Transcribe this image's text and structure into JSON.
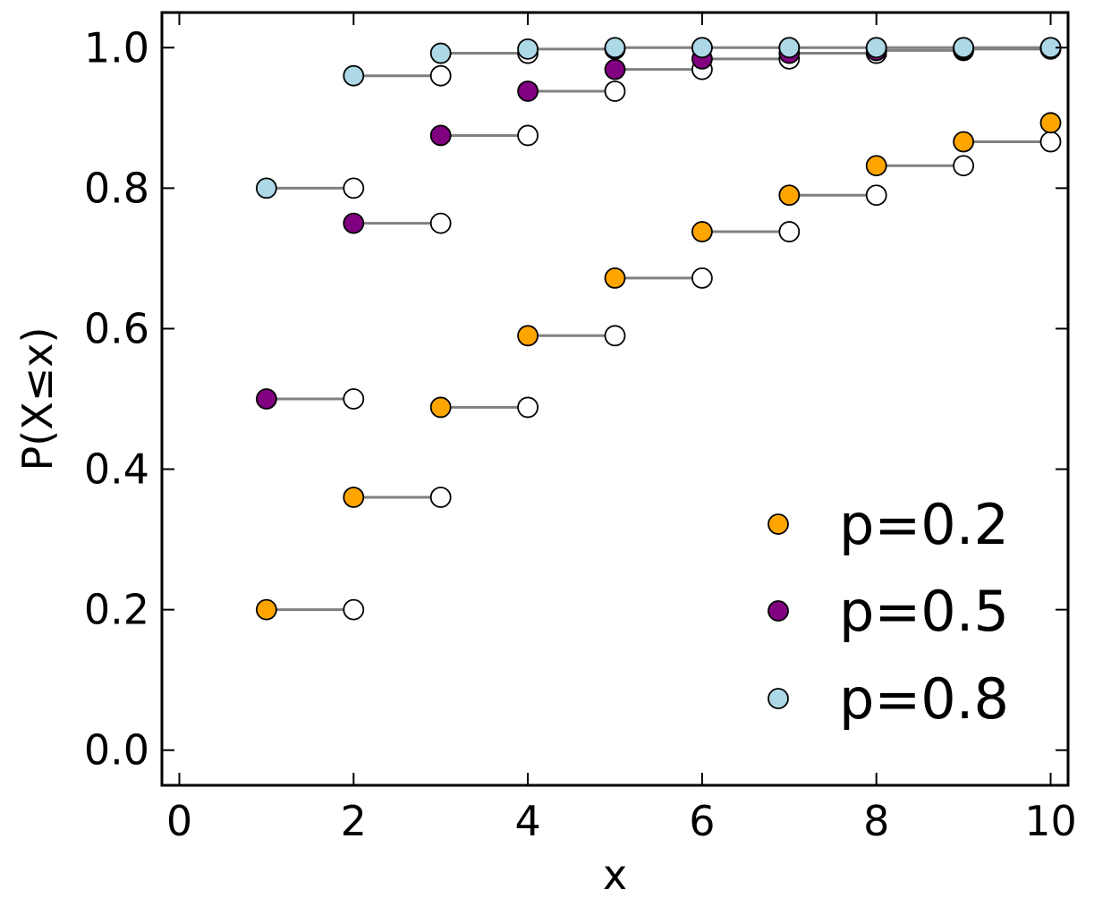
{
  "chart_data": {
    "type": "scatter",
    "xlabel": "x",
    "ylabel": "P(X≤x)",
    "xlim": [
      -0.2,
      10.2
    ],
    "ylim": [
      -0.05,
      1.05
    ],
    "xticks": [
      0,
      2,
      4,
      6,
      8,
      10
    ],
    "xtick_labels": [
      "0",
      "2",
      "4",
      "6",
      "8",
      "10"
    ],
    "yticks": [
      0.0,
      0.2,
      0.4,
      0.6,
      0.8,
      1.0
    ],
    "ytick_labels": [
      "0.0",
      "0.2",
      "0.4",
      "0.6",
      "0.8",
      "1.0"
    ],
    "grid": false,
    "legend_position": "bottom-right",
    "step_line_color": "#808080",
    "open_marker_color": "#ffffff",
    "x": [
      1,
      2,
      3,
      4,
      5,
      6,
      7,
      8,
      9,
      10
    ],
    "series": [
      {
        "name": "p=0.2",
        "color": "#ffa500",
        "values": [
          0.2,
          0.36,
          0.488,
          0.59,
          0.672,
          0.738,
          0.79,
          0.832,
          0.866,
          0.893
        ]
      },
      {
        "name": "p=0.5",
        "color": "#800080",
        "values": [
          0.5,
          0.75,
          0.875,
          0.938,
          0.969,
          0.984,
          0.992,
          0.996,
          0.998,
          0.999
        ]
      },
      {
        "name": "p=0.8",
        "color": "#add8e6",
        "values": [
          0.8,
          0.96,
          0.992,
          0.998,
          1.0,
          1.0,
          1.0,
          1.0,
          1.0,
          1.0
        ]
      }
    ]
  }
}
